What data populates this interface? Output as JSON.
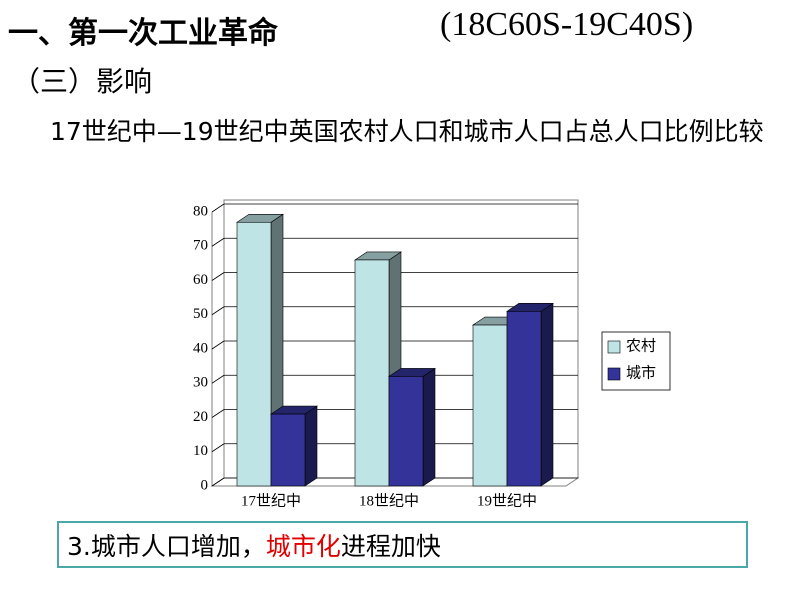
{
  "header": {
    "title": "一、第一次工业革命",
    "period": "(18C60S-19C40S)",
    "subtitle": "（三）影响"
  },
  "chart_data": {
    "type": "bar",
    "title": "17世纪中—19世纪中英国农村人口和城市人口占总人口比例比较",
    "categories": [
      "17世纪中",
      "18世纪中",
      "19世纪中"
    ],
    "series": [
      {
        "name": "农村",
        "color": "#bfe4e6",
        "values": [
          77,
          66,
          47
        ]
      },
      {
        "name": "城市",
        "color": "#333399",
        "values": [
          21,
          32,
          51
        ]
      }
    ],
    "ylim": [
      0,
      80
    ],
    "yticks": [
      0,
      10,
      20,
      30,
      40,
      50,
      60,
      70,
      80
    ],
    "grid": true,
    "legend": "right"
  },
  "conclusion": {
    "prefix": "3.城市人口增加，",
    "highlight": "城市化",
    "suffix": "进程加快"
  }
}
